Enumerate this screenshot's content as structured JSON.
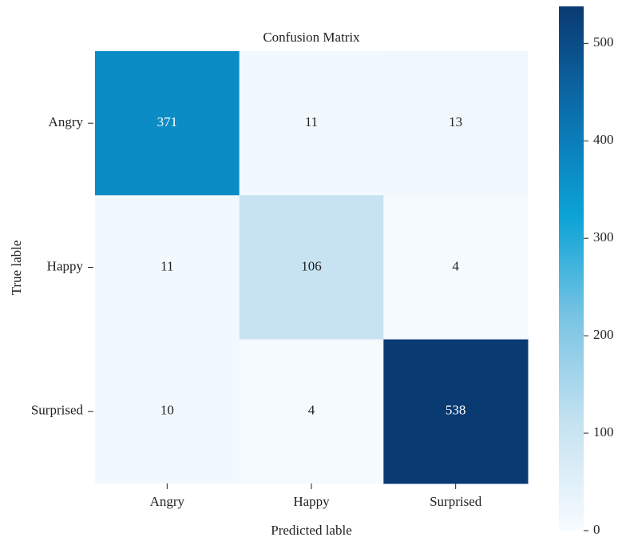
{
  "chart_data": {
    "type": "heatmap",
    "title": "Confusion Matrix",
    "xlabel": "Predicted lable",
    "ylabel": "True lable",
    "x": [
      "Angry",
      "Happy",
      "Surprised"
    ],
    "y": [
      "Angry",
      "Happy",
      "Surprised"
    ],
    "values": [
      [
        371,
        11,
        13
      ],
      [
        11,
        106,
        4
      ],
      [
        10,
        4,
        538
      ]
    ],
    "zlim": [
      0,
      538
    ],
    "zticks": [
      0,
      100,
      200,
      300,
      400,
      500
    ],
    "colormap": [
      "#f7fbff",
      "#c6e3f1",
      "#7cc5e4",
      "#0ba3d6",
      "#0b6fad",
      "#0a3a72"
    ]
  }
}
